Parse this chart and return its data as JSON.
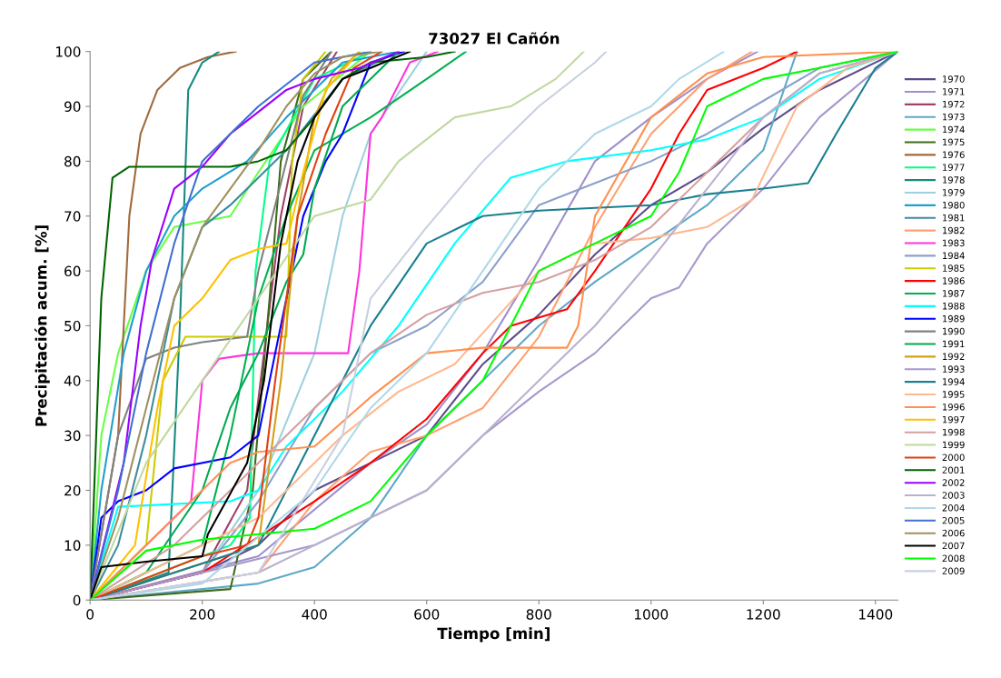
{
  "chart_data": {
    "type": "line",
    "title": "73027 El Cañón",
    "xlabel": "Tiempo [min]",
    "ylabel": "Precipitación acum. [%]",
    "xlim": [
      0,
      1440
    ],
    "xticks": [
      0,
      200,
      400,
      600,
      800,
      1000,
      1200,
      1400
    ],
    "ylim": [
      0,
      100
    ],
    "yticks": [
      0,
      10,
      20,
      30,
      40,
      50,
      60,
      70,
      80,
      90,
      100
    ],
    "grid": false,
    "legend": "right",
    "marker": "none",
    "line_style": "solid",
    "series": [
      {
        "name": "1970",
        "color": "#5f4b8b",
        "x": [
          0,
          200,
          300,
          400,
          500,
          600,
          700,
          800,
          900,
          1000,
          1100,
          1200,
          1300,
          1440
        ],
        "values": [
          0,
          5,
          10,
          20,
          25,
          30,
          43,
          52,
          63,
          72,
          78,
          86,
          93,
          100
        ]
      },
      {
        "name": "1971",
        "color": "#9f8fcc",
        "x": [
          0,
          300,
          500,
          600,
          700,
          800,
          900,
          1000,
          1100,
          1190
        ],
        "values": [
          0,
          8,
          25,
          32,
          45,
          62,
          80,
          88,
          95,
          100
        ]
      },
      {
        "name": "1972",
        "color": "#a0416a",
        "x": [
          0,
          200,
          280,
          310,
          340,
          380,
          440
        ],
        "values": [
          0,
          5,
          20,
          45,
          70,
          90,
          100
        ]
      },
      {
        "name": "1973",
        "color": "#5fa8c8",
        "x": [
          0,
          300,
          400,
          500,
          600,
          700,
          800,
          900,
          1000,
          1100,
          1200,
          1260
        ],
        "values": [
          0,
          3,
          6,
          15,
          30,
          40,
          50,
          58,
          65,
          72,
          82,
          100
        ]
      },
      {
        "name": "1974",
        "color": "#66ff44",
        "x": [
          0,
          20,
          50,
          100,
          150,
          250,
          300,
          380,
          500
        ],
        "values": [
          0,
          30,
          45,
          60,
          68,
          70,
          78,
          90,
          100
        ]
      },
      {
        "name": "1975",
        "color": "#3d6b1a",
        "x": [
          0,
          250,
          290,
          320,
          340,
          380,
          430
        ],
        "values": [
          0,
          2,
          20,
          55,
          80,
          95,
          100
        ]
      },
      {
        "name": "1976",
        "color": "#a06a3c",
        "x": [
          0,
          50,
          70,
          90,
          120,
          160,
          210,
          260
        ],
        "values": [
          0,
          30,
          70,
          85,
          93,
          97,
          99,
          100
        ]
      },
      {
        "name": "1977",
        "color": "#00ff88",
        "x": [
          0,
          250,
          285,
          295,
          320,
          400,
          500
        ],
        "values": [
          0,
          10,
          15,
          60,
          80,
          95,
          100
        ]
      },
      {
        "name": "1978",
        "color": "#168a80",
        "x": [
          0,
          140,
          160,
          175,
          200,
          230
        ],
        "values": [
          0,
          5,
          50,
          93,
          98,
          100
        ]
      },
      {
        "name": "1979",
        "color": "#9fd0de",
        "x": [
          0,
          200,
          300,
          400,
          450,
          500,
          600
        ],
        "values": [
          0,
          5,
          20,
          45,
          70,
          85,
          100
        ]
      },
      {
        "name": "1980",
        "color": "#1f9fd0",
        "x": [
          0,
          20,
          60,
          100,
          150,
          200,
          280,
          350,
          450,
          550
        ],
        "values": [
          0,
          20,
          45,
          60,
          70,
          75,
          80,
          88,
          98,
          100
        ]
      },
      {
        "name": "1981",
        "color": "#3d8ca0",
        "x": [
          0,
          50,
          100,
          150,
          200,
          250,
          350,
          450,
          550
        ],
        "values": [
          0,
          10,
          30,
          55,
          68,
          72,
          82,
          95,
          100
        ]
      },
      {
        "name": "1982",
        "color": "#ffa070",
        "x": [
          0,
          300,
          400,
          500,
          600,
          700,
          800,
          900,
          1000,
          1100,
          1180
        ],
        "values": [
          0,
          5,
          18,
          27,
          30,
          35,
          48,
          68,
          85,
          95,
          100
        ]
      },
      {
        "name": "1983",
        "color": "#ff33dd",
        "x": [
          0,
          180,
          200,
          230,
          300,
          460,
          480,
          500,
          520,
          570,
          620
        ],
        "values": [
          0,
          18,
          40,
          44,
          45,
          45,
          60,
          85,
          88,
          98,
          100
        ]
      },
      {
        "name": "1984",
        "color": "#8ca0cc",
        "x": [
          0,
          200,
          300,
          400,
          500,
          600,
          700,
          800,
          900,
          1000,
          1100,
          1200,
          1300,
          1440
        ],
        "values": [
          0,
          5,
          18,
          35,
          45,
          50,
          58,
          72,
          76,
          80,
          85,
          91,
          97,
          100
        ]
      },
      {
        "name": "1985",
        "color": "#cccc00",
        "x": [
          0,
          100,
          130,
          170,
          350,
          360,
          380,
          420
        ],
        "values": [
          0,
          10,
          40,
          48,
          48,
          80,
          95,
          100
        ]
      },
      {
        "name": "1986",
        "color": "#ff0000",
        "x": [
          0,
          200,
          400,
          500,
          600,
          700,
          750,
          850,
          900,
          1000,
          1050,
          1100,
          1200,
          1260
        ],
        "values": [
          0,
          5,
          18,
          25,
          33,
          45,
          50,
          53,
          60,
          75,
          85,
          93,
          97,
          100
        ]
      },
      {
        "name": "1987",
        "color": "#00b050",
        "x": [
          0,
          200,
          250,
          300,
          350,
          400,
          500,
          600,
          670
        ],
        "values": [
          0,
          10,
          30,
          55,
          70,
          82,
          88,
          95,
          100
        ]
      },
      {
        "name": "1988",
        "color": "#00ffff",
        "x": [
          0,
          50,
          250,
          300,
          350,
          450,
          550,
          650,
          750,
          850,
          1000,
          1100,
          1200,
          1300,
          1440
        ],
        "values": [
          0,
          17,
          18,
          20,
          28,
          38,
          50,
          65,
          77,
          80,
          82,
          84,
          88,
          95,
          100
        ]
      },
      {
        "name": "1989",
        "color": "#0000ff",
        "x": [
          0,
          20,
          50,
          100,
          150,
          250,
          300,
          330,
          380,
          420,
          450,
          500,
          560
        ],
        "values": [
          0,
          15,
          18,
          20,
          24,
          26,
          30,
          45,
          70,
          80,
          85,
          98,
          100
        ]
      },
      {
        "name": "1990",
        "color": "#808080",
        "x": [
          0,
          50,
          100,
          150,
          200,
          280,
          300,
          350,
          380,
          430
        ],
        "values": [
          0,
          30,
          44,
          46,
          47,
          48,
          60,
          80,
          92,
          100
        ]
      },
      {
        "name": "1991",
        "color": "#00a850",
        "x": [
          0,
          100,
          200,
          250,
          300,
          350,
          380,
          400,
          450,
          550
        ],
        "values": [
          0,
          5,
          20,
          35,
          45,
          58,
          63,
          75,
          90,
          100
        ]
      },
      {
        "name": "1992",
        "color": "#d4a017",
        "x": [
          0,
          300,
          340,
          370,
          400,
          430,
          480
        ],
        "values": [
          0,
          10,
          40,
          70,
          88,
          95,
          100
        ]
      },
      {
        "name": "1993",
        "color": "#a898cc",
        "x": [
          0,
          400,
          600,
          700,
          800,
          900,
          1000,
          1050,
          1100,
          1200,
          1300,
          1440
        ],
        "values": [
          0,
          10,
          20,
          30,
          38,
          45,
          55,
          57,
          65,
          75,
          88,
          100
        ]
      },
      {
        "name": "1994",
        "color": "#1a7f90",
        "x": [
          0,
          300,
          400,
          500,
          600,
          700,
          800,
          1000,
          1100,
          1200,
          1280,
          1330,
          1400,
          1440
        ],
        "values": [
          0,
          10,
          30,
          50,
          65,
          70,
          71,
          72,
          74,
          75,
          76,
          85,
          97,
          100
        ]
      },
      {
        "name": "1995",
        "color": "#ffb890",
        "x": [
          0,
          300,
          450,
          550,
          650,
          800,
          900,
          1000,
          1100,
          1180,
          1260,
          1350,
          1440
        ],
        "values": [
          0,
          15,
          30,
          38,
          43,
          60,
          65,
          66,
          68,
          73,
          90,
          97,
          100
        ]
      },
      {
        "name": "1996",
        "color": "#ff9050",
        "x": [
          0,
          250,
          300,
          400,
          500,
          600,
          700,
          850,
          870,
          900,
          1000,
          1100,
          1200,
          1440
        ],
        "values": [
          0,
          25,
          27,
          28,
          37,
          45,
          46,
          46,
          50,
          70,
          88,
          96,
          99,
          100
        ]
      },
      {
        "name": "1997",
        "color": "#ffc000",
        "x": [
          0,
          80,
          120,
          150,
          200,
          250,
          300,
          350,
          380,
          420,
          480
        ],
        "values": [
          0,
          10,
          35,
          50,
          55,
          62,
          64,
          65,
          78,
          93,
          100
        ]
      },
      {
        "name": "1998",
        "color": "#d4a0a0",
        "x": [
          0,
          150,
          250,
          400,
          500,
          600,
          700,
          800,
          900,
          1000,
          1100,
          1200,
          1300,
          1440
        ],
        "values": [
          0,
          10,
          20,
          35,
          45,
          52,
          56,
          58,
          62,
          68,
          78,
          88,
          96,
          100
        ]
      },
      {
        "name": "1999",
        "color": "#c0d8a0",
        "x": [
          0,
          100,
          200,
          300,
          400,
          500,
          550,
          650,
          750,
          830,
          880
        ],
        "values": [
          0,
          25,
          40,
          55,
          70,
          73,
          80,
          88,
          90,
          95,
          100
        ]
      },
      {
        "name": "2000",
        "color": "#e04010",
        "x": [
          0,
          200,
          280,
          300,
          330,
          370,
          420,
          470,
          520
        ],
        "values": [
          0,
          8,
          10,
          15,
          40,
          70,
          85,
          97,
          100
        ]
      },
      {
        "name": "2001",
        "color": "#006400",
        "x": [
          0,
          20,
          40,
          70,
          250,
          300,
          350,
          400,
          450,
          500,
          600,
          650
        ],
        "values": [
          0,
          55,
          77,
          79,
          79,
          80,
          82,
          88,
          95,
          98,
          99,
          100
        ]
      },
      {
        "name": "2002",
        "color": "#9900ff",
        "x": [
          0,
          60,
          90,
          110,
          150,
          200,
          250,
          300,
          350,
          400,
          480,
          550
        ],
        "values": [
          0,
          25,
          50,
          62,
          75,
          79,
          85,
          89,
          93,
          95,
          97,
          100
        ]
      },
      {
        "name": "2003",
        "color": "#bbb0d0",
        "x": [
          0,
          300,
          500,
          600,
          700,
          800,
          900,
          1000,
          1100,
          1200,
          1300,
          1440
        ],
        "values": [
          0,
          5,
          15,
          20,
          30,
          40,
          50,
          62,
          75,
          88,
          96,
          100
        ]
      },
      {
        "name": "2004",
        "color": "#b0d8e8",
        "x": [
          0,
          200,
          400,
          500,
          600,
          700,
          800,
          900,
          1000,
          1050,
          1130
        ],
        "values": [
          0,
          3,
          20,
          35,
          45,
          60,
          75,
          85,
          90,
          95,
          100
        ]
      },
      {
        "name": "2005",
        "color": "#4070d0",
        "x": [
          0,
          50,
          100,
          150,
          200,
          300,
          400,
          500
        ],
        "values": [
          0,
          20,
          45,
          65,
          80,
          90,
          98,
          100
        ]
      },
      {
        "name": "2006",
        "color": "#a09060",
        "x": [
          0,
          50,
          100,
          150,
          200,
          250,
          300,
          350,
          400,
          450,
          520
        ],
        "values": [
          0,
          15,
          35,
          55,
          68,
          75,
          82,
          90,
          96,
          99,
          100
        ]
      },
      {
        "name": "2007",
        "color": "#000000",
        "x": [
          0,
          20,
          100,
          200,
          210,
          280,
          310,
          340,
          370,
          400,
          450,
          500,
          570
        ],
        "values": [
          0,
          6,
          7,
          8,
          12,
          25,
          40,
          65,
          80,
          88,
          95,
          97,
          100
        ]
      },
      {
        "name": "2008",
        "color": "#00ff00",
        "x": [
          0,
          100,
          200,
          300,
          400,
          500,
          600,
          700,
          750,
          800,
          900,
          1000,
          1050,
          1100,
          1200,
          1300,
          1440
        ],
        "values": [
          0,
          9,
          11,
          12,
          13,
          18,
          30,
          40,
          50,
          60,
          65,
          70,
          78,
          90,
          95,
          97,
          100
        ]
      },
      {
        "name": "2009",
        "color": "#c8d0e0",
        "x": [
          0,
          300,
          450,
          500,
          600,
          700,
          800,
          900,
          920
        ],
        "values": [
          0,
          5,
          30,
          55,
          68,
          80,
          90,
          98,
          100
        ]
      }
    ]
  }
}
